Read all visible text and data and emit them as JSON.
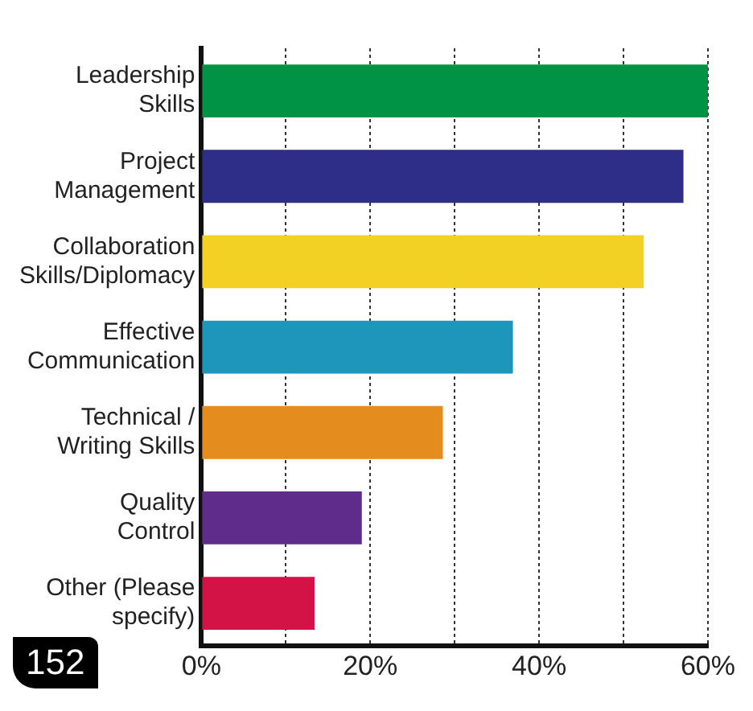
{
  "chart_data": {
    "type": "bar",
    "orientation": "horizontal",
    "categories": [
      "Leadership Skills",
      "Project Management",
      "Collaboration Skills/Diplomacy",
      "Effective Communication",
      "Technical / Writing Skills",
      "Quality Control",
      "Other (Please specify)"
    ],
    "values": [
      60,
      57.1,
      52.4,
      36.9,
      28.6,
      19.0,
      13.4
    ],
    "colors": [
      "#009245",
      "#2e2d88",
      "#f3d024",
      "#1e95bb",
      "#e48d1e",
      "#5f2c8b",
      "#d31245"
    ],
    "xlim": [
      0,
      60
    ],
    "xticks": [
      {
        "value": 0,
        "label": "0%"
      },
      {
        "value": 10,
        "label": null
      },
      {
        "value": 20,
        "label": "20%"
      },
      {
        "value": 30,
        "label": null
      },
      {
        "value": 40,
        "label": "40%"
      },
      {
        "value": 50,
        "label": null
      },
      {
        "value": 60,
        "label": "60%"
      }
    ],
    "grid": "x",
    "legend": false,
    "annotations": [
      "152"
    ]
  }
}
